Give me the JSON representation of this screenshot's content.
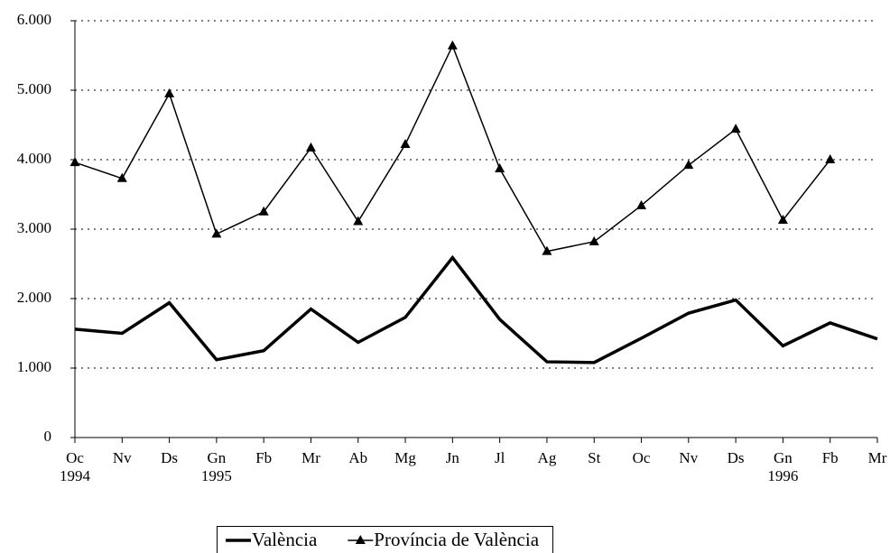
{
  "chart_data": {
    "type": "line",
    "categories": [
      "Oc",
      "Nv",
      "Ds",
      "Gn",
      "Fb",
      "Mr",
      "Ab",
      "Mg",
      "Jn",
      "Jl",
      "Ag",
      "St",
      "Oc",
      "Nv",
      "Ds",
      "Gn",
      "Fb",
      "Mr"
    ],
    "years": [
      "1994",
      null,
      null,
      "1995",
      null,
      null,
      null,
      null,
      null,
      null,
      null,
      null,
      null,
      null,
      null,
      "1996",
      null,
      null
    ],
    "series": [
      {
        "name": "València",
        "color": "#000000",
        "width": 3.5,
        "marker": "none",
        "values": [
          1560,
          1500,
          1940,
          1120,
          1250,
          1850,
          1370,
          1730,
          2590,
          1700,
          1090,
          1080,
          1430,
          1790,
          1980,
          1320,
          1650,
          1420
        ]
      },
      {
        "name": "Província de València",
        "color": "#000000",
        "width": 1.5,
        "marker": "triangle",
        "values": [
          3960,
          3730,
          4950,
          2930,
          3250,
          4170,
          3110,
          4220,
          5640,
          3870,
          2680,
          2820,
          3340,
          3920,
          4440,
          3130,
          4000,
          null
        ]
      }
    ],
    "ylim": [
      0,
      6000
    ],
    "yticks": [
      0,
      {
        "value": 1000,
        "label": "1.000"
      },
      {
        "value": 2000,
        "label": "2.000"
      },
      {
        "value": 3000,
        "label": "3.000"
      },
      {
        "value": 4000,
        "label": "4.000"
      },
      {
        "value": 5000,
        "label": "5.000"
      },
      {
        "value": 6000,
        "label": "6.000"
      }
    ],
    "grid": true,
    "legend": "bottom"
  }
}
